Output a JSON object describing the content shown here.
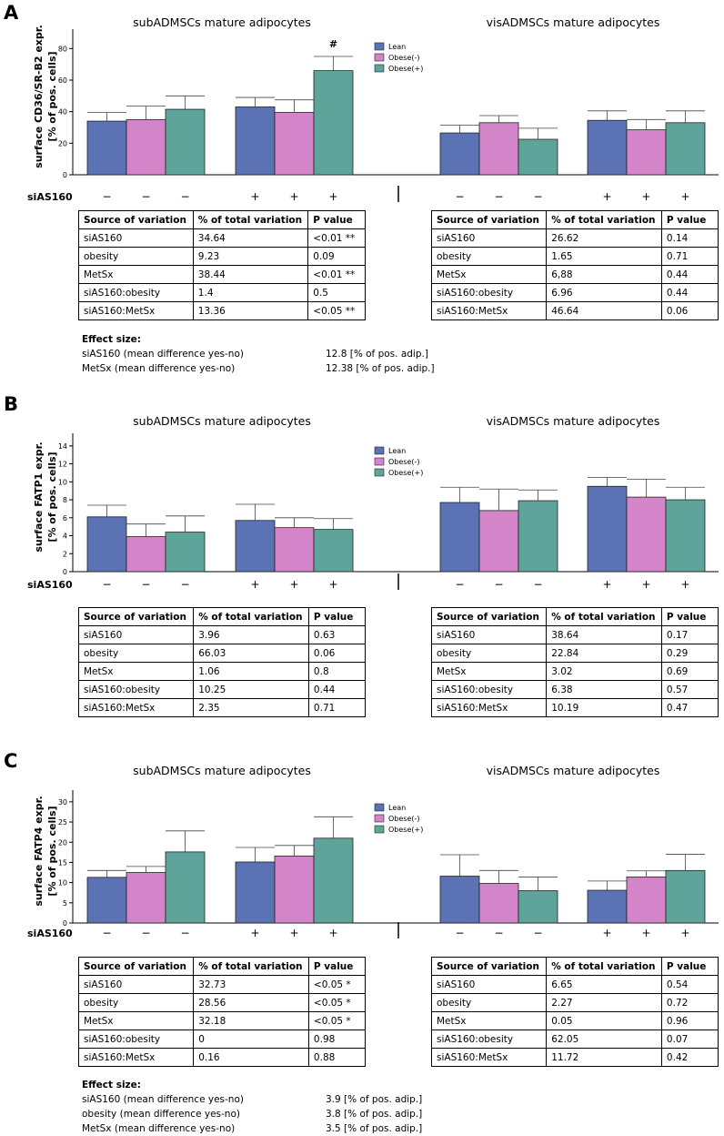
{
  "panels": [
    {
      "label": "A",
      "ylabel_lines": [
        "surface CD36/SR-B2 expr.",
        "[% of pos. cells]"
      ],
      "group_titles": [
        "subADMSCs mature adipocytes",
        "visADMSCs mature adipocytes"
      ],
      "tables": [
        {
          "headers": [
            "Source of variation",
            "% of total variation",
            "P value"
          ],
          "rows": [
            [
              "siAS160",
              "34.64",
              "<0.01 **"
            ],
            [
              "obesity",
              "9.23",
              "0.09"
            ],
            [
              "MetSx",
              "38.44",
              "<0.01 **"
            ],
            [
              "siAS160:obesity",
              "1.4",
              "0.5"
            ],
            [
              "siAS160:MetSx",
              "13.36",
              "<0.05 **"
            ]
          ]
        },
        {
          "headers": [
            "Source of variation",
            "% of total variation",
            "P value"
          ],
          "rows": [
            [
              "siAS160",
              "26.62",
              "0.14"
            ],
            [
              "obesity",
              "1.65",
              "0.71"
            ],
            [
              "MetSx",
              "6,88",
              "0.44"
            ],
            [
              "siAS160:obesity",
              "6.96",
              "0.44"
            ],
            [
              "siAS160:MetSx",
              "46.64",
              "0.06"
            ]
          ]
        }
      ],
      "effect": {
        "title": "Effect size:",
        "rows": [
          [
            "siAS160 (mean difference yes-no)",
            "12.8 [% of pos. adip.]"
          ],
          [
            "MetSx (mean difference yes-no)",
            "12.38 [% of pos. adip.]"
          ]
        ]
      }
    },
    {
      "label": "B",
      "ylabel_lines": [
        "surface FATP1 expr.",
        "[% of pos. cells]"
      ],
      "group_titles": [
        "subADMSCs mature adipocytes",
        "visADMSCs mature adipocytes"
      ],
      "tables": [
        {
          "headers": [
            "Source of variation",
            "% of total variation",
            "P value"
          ],
          "rows": [
            [
              "siAS160",
              "3.96",
              "0.63"
            ],
            [
              "obesity",
              "66.03",
              "0.06"
            ],
            [
              "MetSx",
              "1.06",
              "0.8"
            ],
            [
              "siAS160:obesity",
              "10.25",
              "0.44"
            ],
            [
              "siAS160:MetSx",
              "2.35",
              "0.71"
            ]
          ]
        },
        {
          "headers": [
            "Source of variation",
            "% of total variation",
            "P value"
          ],
          "rows": [
            [
              "siAS160",
              "38.64",
              "0.17"
            ],
            [
              "obesity",
              "22.84",
              "0.29"
            ],
            [
              "MetSx",
              "3.02",
              "0.69"
            ],
            [
              "siAS160:obesity",
              "6.38",
              "0.57"
            ],
            [
              "siAS160:MetSx",
              "10.19",
              "0.47"
            ]
          ]
        }
      ]
    },
    {
      "label": "C",
      "ylabel_lines": [
        "surface FATP4 expr.",
        "[% of pos. cells]"
      ],
      "group_titles": [
        "subADMSCs mature adipocytes",
        "visADMSCs mature adipocytes"
      ],
      "tables": [
        {
          "headers": [
            "Source of variation",
            "% of total variation",
            "P value"
          ],
          "rows": [
            [
              "siAS160",
              "32.73",
              "<0.05 *"
            ],
            [
              "obesity",
              "28.56",
              "<0.05 *"
            ],
            [
              "MetSx",
              "32.18",
              "<0.05 *"
            ],
            [
              "siAS160:obesity",
              "0",
              "0.98"
            ],
            [
              "siAS160:MetSx",
              "0.16",
              "0.88"
            ]
          ]
        },
        {
          "headers": [
            "Source of variation",
            "% of total variation",
            "P value"
          ],
          "rows": [
            [
              "siAS160",
              "6.65",
              "0.54"
            ],
            [
              "obesity",
              "2.27",
              "0.72"
            ],
            [
              "MetSx",
              "0.05",
              "0.96"
            ],
            [
              "siAS160:obesity",
              "62.05",
              "0.07"
            ],
            [
              "siAS160:MetSx",
              "11.72",
              "0.42"
            ]
          ]
        }
      ],
      "effect": {
        "title": "Effect size:",
        "rows": [
          [
            "siAS160 (mean difference yes-no)",
            "3.9 [% of pos. adip.]"
          ],
          [
            "obesity (mean difference yes-no)",
            "3.8 [% of pos. adip.]"
          ],
          [
            "MetSx (mean difference yes-no)",
            "3.5 [% of pos. adip.]"
          ]
        ]
      }
    }
  ],
  "chart_data": [
    {
      "type": "bar",
      "title": "surface CD36/SR-B2 expr.",
      "ylabel": "surface CD36/SR-B2 expr. [% of pos. cells]",
      "ylim": [
        0,
        90
      ],
      "yticks": [
        0,
        20,
        40,
        60,
        80
      ],
      "legend": [
        "Lean",
        "Obese(-)",
        "Obese(+)"
      ],
      "colors": [
        "#5b72b5",
        "#d484c8",
        "#5fa49a"
      ],
      "siAS160_label": "siAS160",
      "siAS160_marks": [
        "−",
        "−",
        "−",
        "+",
        "+",
        "+",
        "−",
        "−",
        "−",
        "+",
        "+",
        "+"
      ],
      "annotation": "#",
      "groups": [
        {
          "values": [
            34,
            35,
            41.5
          ],
          "errors": [
            5.5,
            8.5,
            8.5
          ]
        },
        {
          "values": [
            43,
            39.5,
            66
          ],
          "errors": [
            6,
            8,
            9
          ],
          "annotate_index": 2
        },
        {
          "values": [
            26.5,
            33,
            22.5
          ],
          "errors": [
            5,
            4.5,
            7
          ]
        },
        {
          "values": [
            34.5,
            28.5,
            33
          ],
          "errors": [
            6,
            6.5,
            7.5
          ]
        }
      ]
    },
    {
      "type": "bar",
      "title": "surface FATP1 expr.",
      "ylabel": "surface FATP1 expr. [% of pos. cells]",
      "ylim": [
        0,
        15
      ],
      "yticks": [
        0,
        2,
        4,
        6,
        8,
        10,
        12,
        14
      ],
      "legend": [
        "Lean",
        "Obese(-)",
        "Obese(+)"
      ],
      "colors": [
        "#5b72b5",
        "#d484c8",
        "#5fa49a"
      ],
      "siAS160_label": "siAS160",
      "siAS160_marks": [
        "−",
        "−",
        "−",
        "+",
        "+",
        "+",
        "−",
        "−",
        "−",
        "+",
        "+",
        "+"
      ],
      "groups": [
        {
          "values": [
            6.1,
            3.9,
            4.4
          ],
          "errors": [
            1.3,
            1.4,
            1.8
          ]
        },
        {
          "values": [
            5.7,
            4.9,
            4.7
          ],
          "errors": [
            1.8,
            1.1,
            1.2
          ]
        },
        {
          "values": [
            7.7,
            6.8,
            7.9
          ],
          "errors": [
            1.7,
            2.4,
            1.2
          ]
        },
        {
          "values": [
            9.5,
            8.3,
            8.0
          ],
          "errors": [
            1.0,
            2.0,
            1.4
          ]
        }
      ]
    },
    {
      "type": "bar",
      "title": "surface FATP4 expr.",
      "ylabel": "surface FATP4 expr. [% of pos. cells]",
      "ylim": [
        0,
        32
      ],
      "yticks": [
        0,
        5,
        10,
        15,
        20,
        25,
        30
      ],
      "legend": [
        "Lean",
        "Obese(-)",
        "Obese(+)"
      ],
      "colors": [
        "#5b72b5",
        "#d484c8",
        "#5fa49a"
      ],
      "siAS160_label": "siAS160",
      "siAS160_marks": [
        "−",
        "−",
        "−",
        "+",
        "+",
        "+",
        "−",
        "−",
        "−",
        "+",
        "+",
        "+"
      ],
      "groups": [
        {
          "values": [
            11.3,
            12.5,
            17.6
          ],
          "errors": [
            1.7,
            1.5,
            5.2
          ]
        },
        {
          "values": [
            15.1,
            16.6,
            21.0
          ],
          "errors": [
            3.6,
            2.6,
            5.3
          ]
        },
        {
          "values": [
            11.6,
            9.8,
            8.0
          ],
          "errors": [
            5.3,
            3.2,
            3.4
          ]
        },
        {
          "values": [
            8.1,
            11.4,
            13.0
          ],
          "errors": [
            2.3,
            1.5,
            4.0
          ]
        }
      ]
    }
  ]
}
